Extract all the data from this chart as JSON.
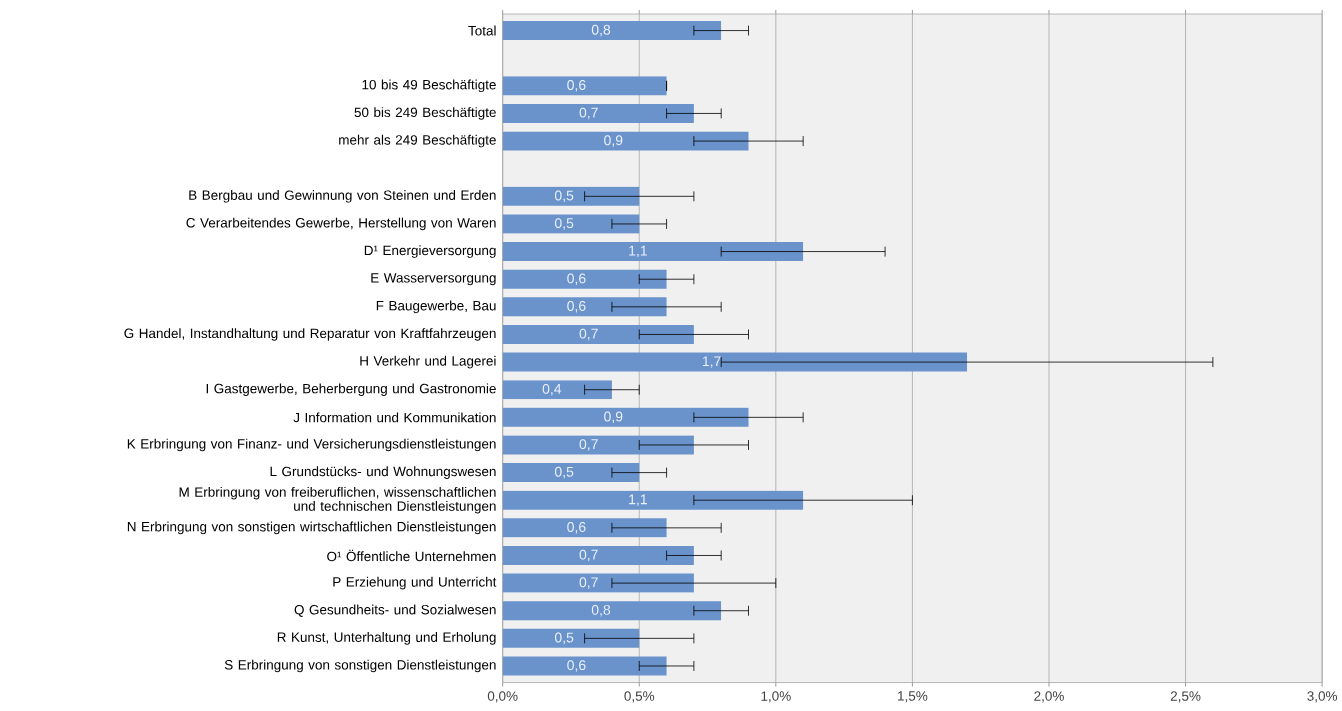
{
  "chart_data": {
    "type": "bar",
    "orientation": "horizontal",
    "categories": [
      "Total",
      null,
      "10 bis 49 Beschäftigte",
      "50 bis 249 Beschäftigte",
      "mehr als 249 Beschäftigte",
      null,
      "B Bergbau und Gewinnung von Steinen und Erden",
      "C Verarbeitendes Gewerbe, Herstellung von Waren",
      "D¹ Energieversorgung",
      "E Wasserversorgung",
      "F Baugewerbe, Bau",
      "G Handel, Instandhaltung und Reparatur von Kraftfahrzeugen",
      "H Verkehr und Lagerei",
      "I Gastgewerbe, Beherbergung und Gastronomie",
      "J Information und Kommunikation",
      "K Erbringung von Finanz- und Versicherungsdienstleistungen",
      "L Grundstücks- und Wohnungswesen",
      "M Erbringung von freiberuflichen, wissenschaftlichen und technischen Dienstleistungen",
      "N Erbringung von sonstigen wirtschaftlichen Dienstleistungen",
      "O¹ Öffentliche Unternehmen",
      "P Erziehung und Unterricht",
      "Q Gesundheits- und Sozialwesen",
      "R Kunst, Unterhaltung und Erholung",
      "S Erbringung von sonstigen Dienstleistungen"
    ],
    "values": [
      0.8,
      null,
      0.6,
      0.7,
      0.9,
      null,
      0.5,
      0.5,
      1.1,
      0.6,
      0.6,
      0.7,
      1.7,
      0.4,
      0.9,
      0.7,
      0.5,
      1.1,
      0.6,
      0.7,
      0.7,
      0.8,
      0.5,
      0.6
    ],
    "value_labels": [
      "0,8",
      null,
      "0,6",
      "0,7",
      "0,9",
      null,
      "0,5",
      "0,5",
      "1,1",
      "0,6",
      "0,6",
      "0,7",
      "1,7",
      "0,4",
      "0,9",
      "0,7",
      "0,5",
      "1,1",
      "0,6",
      "0,7",
      "0,7",
      "0,8",
      "0,5",
      "0,6"
    ],
    "errors": [
      [
        0.7,
        0.9
      ],
      null,
      [
        0.6,
        0.6
      ],
      [
        0.6,
        0.8
      ],
      [
        0.7,
        1.1
      ],
      null,
      [
        0.3,
        0.7
      ],
      [
        0.4,
        0.6
      ],
      [
        0.8,
        1.4
      ],
      [
        0.5,
        0.7
      ],
      [
        0.4,
        0.8
      ],
      [
        0.5,
        0.9
      ],
      [
        0.8,
        2.6
      ],
      [
        0.3,
        0.5
      ],
      [
        0.7,
        1.1
      ],
      [
        0.5,
        0.9
      ],
      [
        0.4,
        0.6
      ],
      [
        0.7,
        1.5
      ],
      [
        0.4,
        0.8
      ],
      [
        0.6,
        0.8
      ],
      [
        0.4,
        1.0
      ],
      [
        0.7,
        0.9
      ],
      [
        0.3,
        0.7
      ],
      [
        0.5,
        0.7
      ]
    ],
    "color": "#6a93cc",
    "xlim": [
      0,
      3
    ],
    "xticks": [
      {
        "value": 0,
        "label": "0,0%"
      },
      {
        "value": 0.5,
        "label": "0,5%"
      },
      {
        "value": 1,
        "label": "1,0%"
      },
      {
        "value": 1.5,
        "label": "1,5%"
      },
      {
        "value": 2,
        "label": "2,0%"
      },
      {
        "value": 2.5,
        "label": "2,5%"
      },
      {
        "value": 3,
        "label": "3,0%"
      }
    ],
    "grid": "x"
  }
}
